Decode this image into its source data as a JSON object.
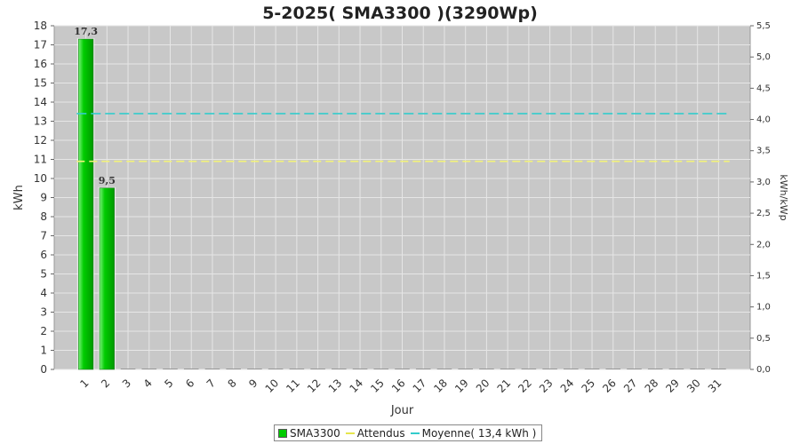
{
  "chart_data": {
    "type": "bar",
    "title": "5-2025( SMA3300 )(3290Wp)",
    "xlabel": "Jour",
    "ylabel": "kWh",
    "y2label": "kWh/kWp",
    "categories": [
      "1",
      "2",
      "3",
      "4",
      "5",
      "6",
      "7",
      "8",
      "9",
      "10",
      "11",
      "12",
      "13",
      "14",
      "15",
      "16",
      "17",
      "18",
      "19",
      "20",
      "21",
      "22",
      "23",
      "24",
      "25",
      "26",
      "27",
      "28",
      "29",
      "30",
      "31"
    ],
    "series": [
      {
        "name": "SMA3300",
        "type": "bar",
        "color": "#00cc00",
        "values": [
          17.3,
          9.5,
          0,
          0,
          0,
          0,
          0,
          0,
          0,
          0,
          0,
          0,
          0,
          0,
          0,
          0,
          0,
          0,
          0,
          0,
          0,
          0,
          0,
          0,
          0,
          0,
          0,
          0,
          0,
          0,
          0
        ],
        "data_labels": [
          "17,3",
          "9,5"
        ]
      },
      {
        "name": "Attendus",
        "type": "line",
        "color": "#ffff66",
        "value": 10.9
      },
      {
        "name": "Moyenne( 13,4 kWh )",
        "type": "line",
        "color": "#33cccc",
        "value": 13.4
      }
    ],
    "ylim": [
      0,
      18
    ],
    "yticks": [
      "0",
      "1",
      "2",
      "3",
      "4",
      "5",
      "6",
      "7",
      "8",
      "9",
      "10",
      "11",
      "12",
      "13",
      "14",
      "15",
      "16",
      "17",
      "18"
    ],
    "y2lim": [
      0,
      5.5
    ],
    "y2ticks": [
      "0,0",
      "0,5",
      "1,0",
      "1,5",
      "2,0",
      "2,5",
      "3,0",
      "3,5",
      "4,0",
      "4,5",
      "5,0",
      "5,5"
    ],
    "grid": true,
    "legend_position": "bottom-center",
    "plot_background": "#c8c8c8"
  }
}
